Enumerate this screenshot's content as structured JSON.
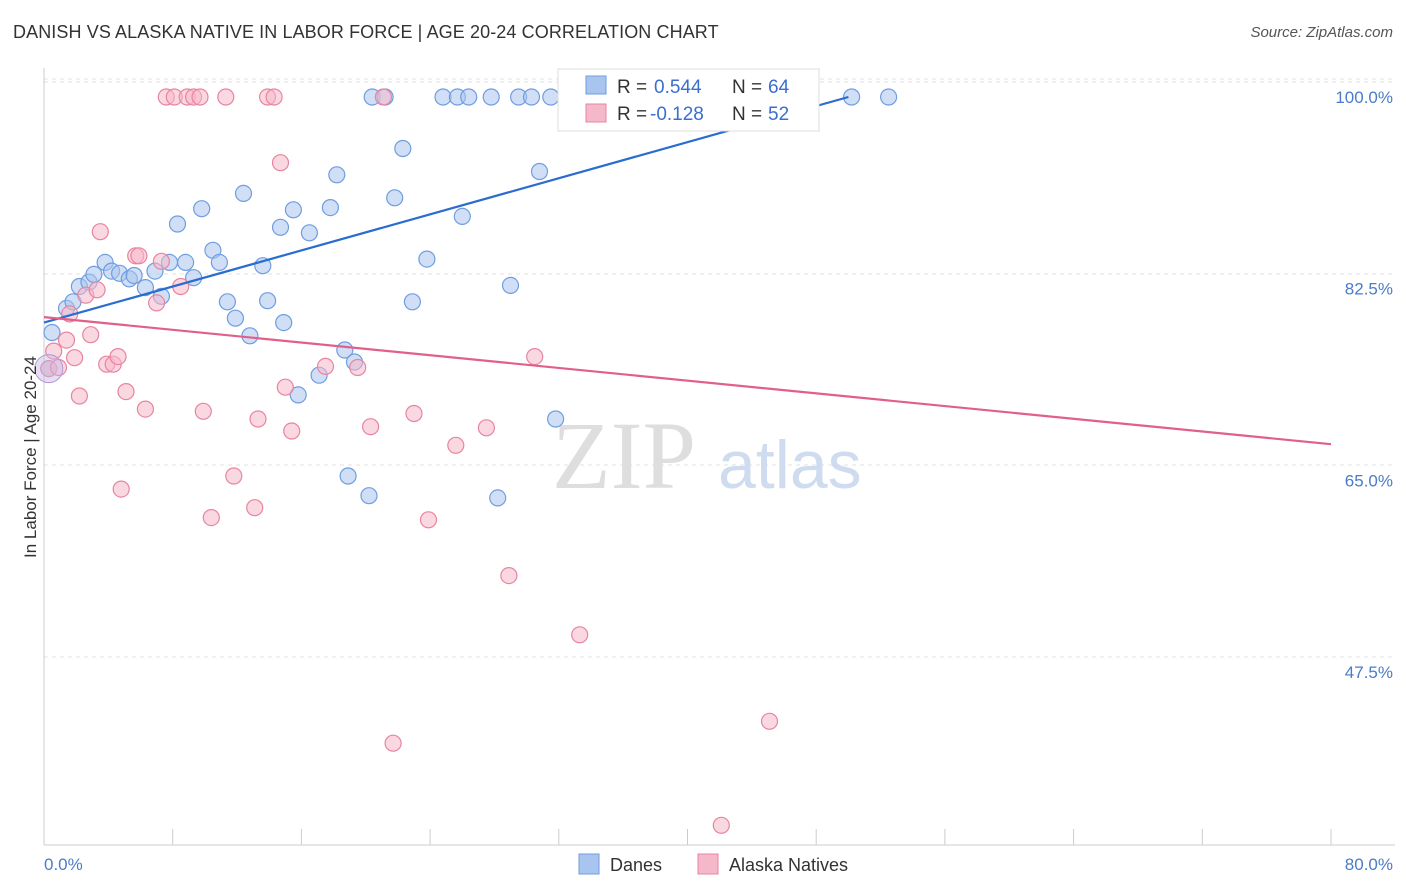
{
  "title": "DANISH VS ALASKA NATIVE IN LABOR FORCE | AGE 20-24 CORRELATION CHART",
  "source": "Source: ZipAtlas.com",
  "watermark": {
    "zip": "ZIP",
    "atlas": "atlas"
  },
  "legend_box": {
    "rows": [
      {
        "r_label": "R =",
        "r_value": "0.544",
        "n_label": "N =",
        "n_value": "64",
        "color": "#a9c5ef"
      },
      {
        "r_label": "R =",
        "r_value": "-0.128",
        "n_label": "N =",
        "n_value": "52",
        "color": "#f5b8cb"
      }
    ]
  },
  "bottom_legend": [
    {
      "label": "Danes",
      "color": "#a9c5ef"
    },
    {
      "label": "Alaska Natives",
      "color": "#f5b8cb"
    }
  ],
  "chart_data": {
    "type": "scatter",
    "title": "DANISH VS ALASKA NATIVE IN LABOR FORCE | AGE 20-24 CORRELATION CHART",
    "xlabel": "",
    "ylabel": "In Labor Force | Age 20-24",
    "xlim": [
      0,
      80
    ],
    "ylim": [
      32,
      102
    ],
    "x_tick_labels": [
      "0.0%",
      "80.0%"
    ],
    "y_ticks": [
      47.5,
      65.0,
      82.5,
      100.0
    ],
    "y_tick_labels": [
      "47.5%",
      "65.0%",
      "82.5%",
      "100.0%"
    ],
    "grid": true,
    "legend_position": "top-center",
    "series": [
      {
        "name": "Danes",
        "color": "#a9c5ef",
        "stroke": "#6f9de0",
        "trend": {
          "x": [
            0,
            50.0
          ],
          "y": [
            79.4,
            100.0
          ],
          "color": "#2a6dd0"
        },
        "points": [
          [
            0.5,
            78.5
          ],
          [
            1.4,
            80.7
          ],
          [
            1.8,
            81.3
          ],
          [
            2.2,
            82.7
          ],
          [
            2.8,
            83.1
          ],
          [
            3.1,
            83.8
          ],
          [
            3.8,
            84.9
          ],
          [
            4.2,
            84.1
          ],
          [
            4.7,
            83.9
          ],
          [
            5.3,
            83.4
          ],
          [
            5.6,
            83.7
          ],
          [
            6.3,
            82.6
          ],
          [
            6.9,
            84.1
          ],
          [
            7.3,
            81.8
          ],
          [
            7.8,
            84.9
          ],
          [
            8.3,
            88.4
          ],
          [
            8.8,
            84.9
          ],
          [
            9.3,
            83.5
          ],
          [
            9.8,
            89.8
          ],
          [
            10.5,
            86.0
          ],
          [
            10.9,
            84.9
          ],
          [
            11.4,
            81.3
          ],
          [
            11.9,
            79.8
          ],
          [
            12.4,
            91.2
          ],
          [
            12.8,
            78.2
          ],
          [
            13.6,
            84.6
          ],
          [
            13.9,
            81.4
          ],
          [
            14.7,
            88.1
          ],
          [
            14.9,
            79.4
          ],
          [
            15.5,
            89.7
          ],
          [
            15.8,
            72.8
          ],
          [
            16.5,
            87.6
          ],
          [
            17.1,
            74.6
          ],
          [
            17.8,
            89.9
          ],
          [
            18.2,
            92.9
          ],
          [
            18.7,
            76.9
          ],
          [
            18.9,
            65.4
          ],
          [
            19.3,
            75.8
          ],
          [
            20.2,
            63.6
          ],
          [
            20.4,
            100.0
          ],
          [
            21.2,
            100.0
          ],
          [
            21.8,
            90.8
          ],
          [
            22.3,
            95.3
          ],
          [
            22.9,
            81.3
          ],
          [
            23.8,
            85.2
          ],
          [
            24.8,
            100.0
          ],
          [
            25.7,
            100.0
          ],
          [
            26.0,
            89.1
          ],
          [
            26.4,
            100.0
          ],
          [
            27.8,
            100.0
          ],
          [
            28.2,
            63.4
          ],
          [
            29.0,
            82.8
          ],
          [
            29.5,
            100.0
          ],
          [
            30.3,
            100.0
          ],
          [
            30.8,
            93.2
          ],
          [
            31.5,
            100.0
          ],
          [
            31.8,
            70.6
          ],
          [
            35.6,
            100.0
          ],
          [
            38.4,
            100.0
          ],
          [
            43.1,
            100.0
          ],
          [
            45.3,
            100.0
          ],
          [
            50.2,
            100.0
          ],
          [
            52.5,
            100.0
          ],
          [
            0.3,
            75.2
          ]
        ]
      },
      {
        "name": "Alaska Natives",
        "color": "#f5b8cb",
        "stroke": "#e9849f",
        "trend": {
          "x": [
            0,
            80
          ],
          "y": [
            79.9,
            68.3
          ],
          "color": "#e0608a"
        },
        "points": [
          [
            0.3,
            75.2
          ],
          [
            0.6,
            76.8
          ],
          [
            0.9,
            75.3
          ],
          [
            1.4,
            77.8
          ],
          [
            1.6,
            80.2
          ],
          [
            1.9,
            76.2
          ],
          [
            2.2,
            72.7
          ],
          [
            2.6,
            81.9
          ],
          [
            2.9,
            78.3
          ],
          [
            3.3,
            82.4
          ],
          [
            3.5,
            87.7
          ],
          [
            3.9,
            75.6
          ],
          [
            4.3,
            75.6
          ],
          [
            4.6,
            76.3
          ],
          [
            4.8,
            64.2
          ],
          [
            5.1,
            73.1
          ],
          [
            5.7,
            85.5
          ],
          [
            5.9,
            85.5
          ],
          [
            6.3,
            71.5
          ],
          [
            7.0,
            81.2
          ],
          [
            7.3,
            85.0
          ],
          [
            7.6,
            100.0
          ],
          [
            8.1,
            100.0
          ],
          [
            8.5,
            82.7
          ],
          [
            8.9,
            100.0
          ],
          [
            9.3,
            100.0
          ],
          [
            9.7,
            100.0
          ],
          [
            9.9,
            71.3
          ],
          [
            10.4,
            61.6
          ],
          [
            11.3,
            100.0
          ],
          [
            11.8,
            65.4
          ],
          [
            13.1,
            62.5
          ],
          [
            13.3,
            70.6
          ],
          [
            13.9,
            100.0
          ],
          [
            14.3,
            100.0
          ],
          [
            14.7,
            94.0
          ],
          [
            15.0,
            73.5
          ],
          [
            15.4,
            69.5
          ],
          [
            17.5,
            75.4
          ],
          [
            19.5,
            75.3
          ],
          [
            20.3,
            69.9
          ],
          [
            21.1,
            100.0
          ],
          [
            21.7,
            41.0
          ],
          [
            23.0,
            71.1
          ],
          [
            23.9,
            61.4
          ],
          [
            25.6,
            68.2
          ],
          [
            27.5,
            69.8
          ],
          [
            28.9,
            56.3
          ],
          [
            30.5,
            76.3
          ],
          [
            33.3,
            50.9
          ],
          [
            42.1,
            33.5
          ],
          [
            45.1,
            43.0
          ]
        ]
      }
    ]
  }
}
